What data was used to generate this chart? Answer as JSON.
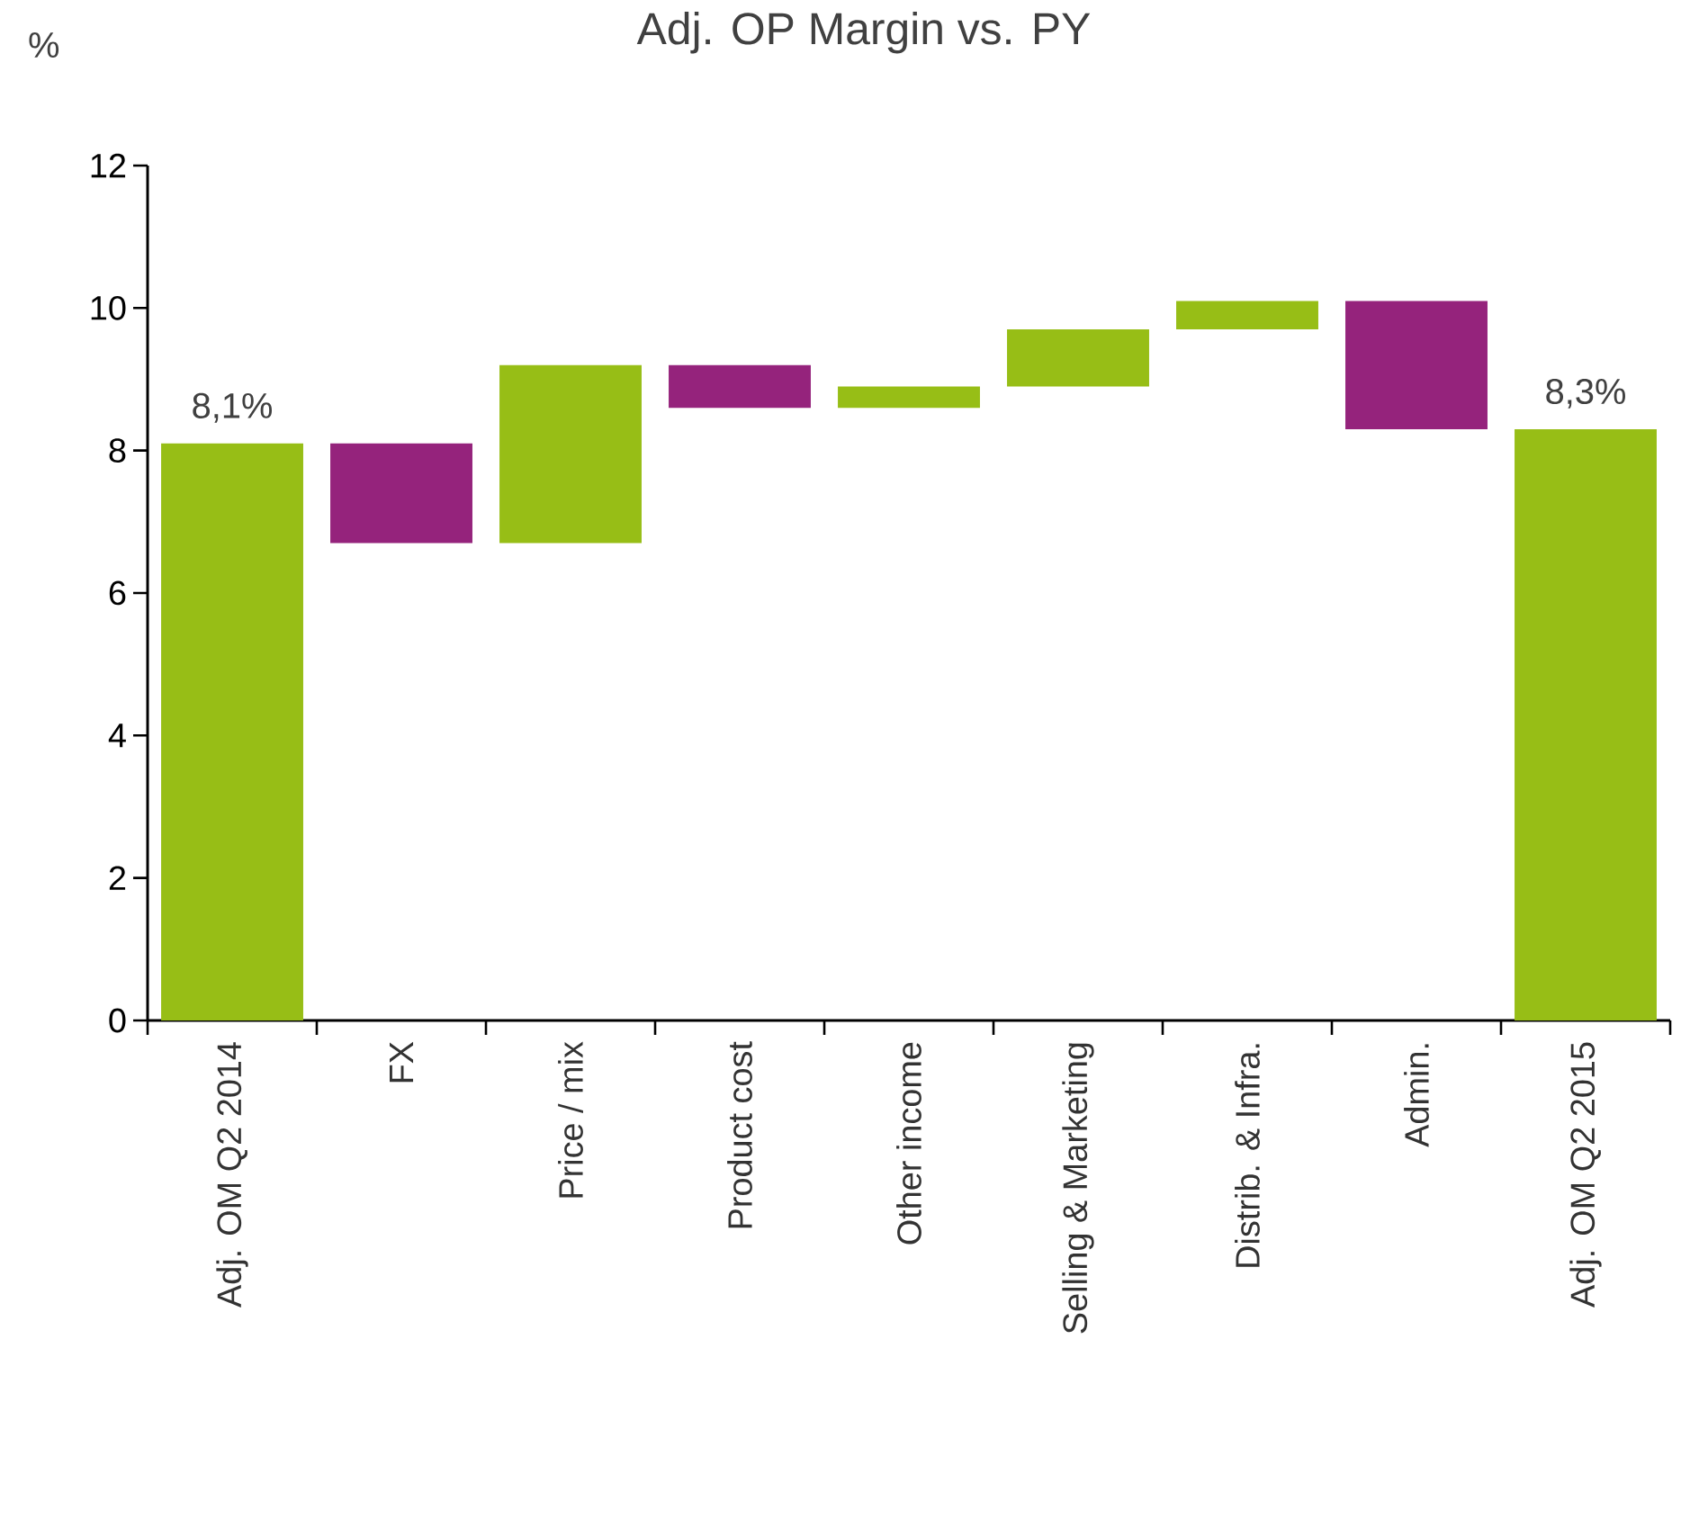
{
  "chart_data": {
    "type": "bar",
    "title": "Adj. OP Margin vs. PY",
    "ylabel": "%",
    "categories": [
      "Adj. OM Q2 2014",
      "FX",
      "Price / mix",
      "Product cost",
      "Other income",
      "Selling & Marketing",
      "Distrib. & Infra.",
      "Admin.",
      "Adj. OM Q2 2015"
    ],
    "base": [
      0,
      8.1,
      6.7,
      9.2,
      8.6,
      8.9,
      9.7,
      10.1,
      0
    ],
    "values": [
      8.1,
      -1.4,
      2.5,
      -0.6,
      0.3,
      0.8,
      0.4,
      -1.8,
      8.3
    ],
    "colors": [
      "#97be16",
      "#95237c",
      "#97be16",
      "#95237c",
      "#97be16",
      "#97be16",
      "#97be16",
      "#95237c",
      "#97be16"
    ],
    "value_labels": [
      "8,1%",
      null,
      null,
      null,
      null,
      null,
      null,
      null,
      "8,3%"
    ],
    "ylim": [
      0,
      12
    ],
    "yticks": [
      0,
      2,
      4,
      6,
      8,
      10,
      12
    ]
  }
}
